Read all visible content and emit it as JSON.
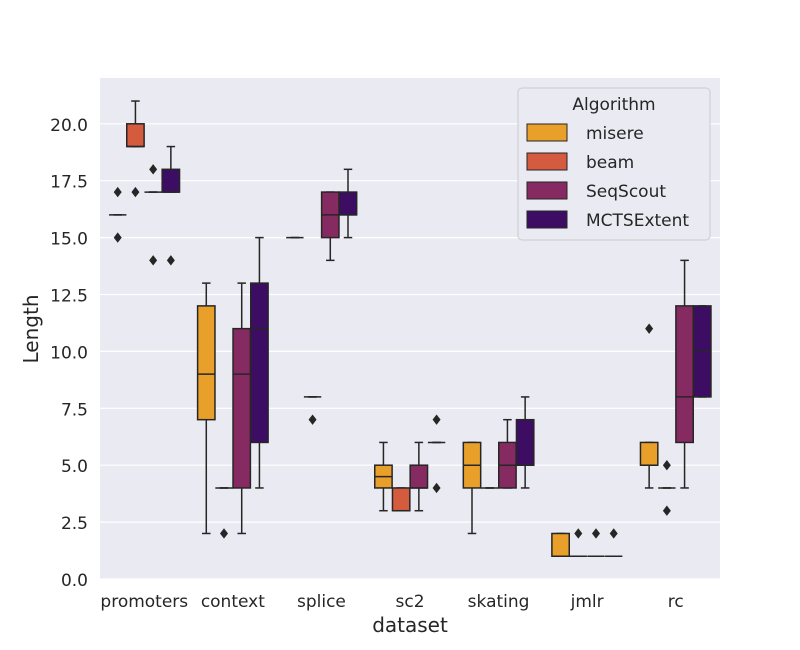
{
  "chart_data": {
    "type": "box",
    "title": "",
    "xlabel": "dataset",
    "ylabel": "Length",
    "ylim": [
      0,
      22.5
    ],
    "yticks": [
      0.0,
      2.5,
      5.0,
      7.5,
      10.0,
      12.5,
      15.0,
      17.5,
      20.0
    ],
    "ytick_labels": [
      "0.0",
      "2.5",
      "5.0",
      "7.5",
      "10.0",
      "12.5",
      "15.0",
      "17.5",
      "20.0"
    ],
    "grid": true,
    "legend": {
      "title": "Algorithm",
      "position": "top-right"
    },
    "categories": [
      "promoters",
      "context",
      "splice",
      "sc2",
      "skating",
      "jmlr",
      "rc"
    ],
    "series": [
      {
        "name": "misere",
        "color": "#e8a02a",
        "boxes": [
          {
            "q1": 16,
            "median": 16,
            "q3": 16,
            "whislo": 16,
            "whishi": 16,
            "fliers": [
              15,
              17
            ]
          },
          {
            "q1": 7,
            "median": 9,
            "q3": 12,
            "whislo": 2,
            "whishi": 13,
            "fliers": []
          },
          {
            "q1": 15,
            "median": 15,
            "q3": 15,
            "whislo": 15,
            "whishi": 15,
            "fliers": []
          },
          {
            "q1": 4,
            "median": 4.5,
            "q3": 5,
            "whislo": 3,
            "whishi": 6,
            "fliers": []
          },
          {
            "q1": 4,
            "median": 5,
            "q3": 6,
            "whislo": 2,
            "whishi": 6,
            "fliers": []
          },
          {
            "q1": 1,
            "median": 1,
            "q3": 2,
            "whislo": 1,
            "whishi": 2,
            "fliers": []
          },
          {
            "q1": 5,
            "median": 5,
            "q3": 6,
            "whislo": 4,
            "whishi": 6,
            "fliers": [
              11
            ]
          }
        ]
      },
      {
        "name": "beam",
        "color": "#d45b3e",
        "boxes": [
          {
            "q1": 19,
            "median": 19,
            "q3": 20,
            "whislo": 19,
            "whishi": 21,
            "fliers": [
              17
            ]
          },
          {
            "q1": 4,
            "median": 4,
            "q3": 4,
            "whislo": 4,
            "whishi": 4,
            "fliers": [
              2
            ]
          },
          {
            "q1": 8,
            "median": 8,
            "q3": 8,
            "whislo": 8,
            "whishi": 8,
            "fliers": [
              7
            ]
          },
          {
            "q1": 3,
            "median": 3,
            "q3": 4,
            "whislo": 3,
            "whishi": 4,
            "fliers": []
          },
          {
            "q1": 4,
            "median": 4,
            "q3": 4,
            "whislo": 4,
            "whishi": 4,
            "fliers": []
          },
          {
            "q1": 1,
            "median": 1,
            "q3": 1,
            "whislo": 1,
            "whishi": 1,
            "fliers": [
              2
            ]
          },
          {
            "q1": 4,
            "median": 4,
            "q3": 4,
            "whislo": 4,
            "whishi": 4,
            "fliers": [
              5,
              3
            ]
          }
        ]
      },
      {
        "name": "SeqScout",
        "color": "#862a62",
        "boxes": [
          {
            "q1": 17,
            "median": 17,
            "q3": 17,
            "whislo": 17,
            "whishi": 17,
            "fliers": [
              18,
              14
            ]
          },
          {
            "q1": 4,
            "median": 9,
            "q3": 11,
            "whislo": 2,
            "whishi": 13,
            "fliers": []
          },
          {
            "q1": 15,
            "median": 16,
            "q3": 17,
            "whislo": 14,
            "whishi": 17,
            "fliers": []
          },
          {
            "q1": 4,
            "median": 4,
            "q3": 5,
            "whislo": 3,
            "whishi": 6,
            "fliers": []
          },
          {
            "q1": 4,
            "median": 5,
            "q3": 6,
            "whislo": 4,
            "whishi": 7,
            "fliers": []
          },
          {
            "q1": 1,
            "median": 1,
            "q3": 1,
            "whislo": 1,
            "whishi": 1,
            "fliers": [
              2
            ]
          },
          {
            "q1": 6,
            "median": 8,
            "q3": 12,
            "whislo": 4,
            "whishi": 14,
            "fliers": []
          }
        ]
      },
      {
        "name": "MCTSExtent",
        "color": "#3c0d63",
        "boxes": [
          {
            "q1": 17,
            "median": 17,
            "q3": 18,
            "whislo": 17,
            "whishi": 19,
            "fliers": [
              14
            ]
          },
          {
            "q1": 6,
            "median": 11,
            "q3": 13,
            "whislo": 4,
            "whishi": 15,
            "fliers": []
          },
          {
            "q1": 16,
            "median": 16,
            "q3": 17,
            "whislo": 15,
            "whishi": 18,
            "fliers": []
          },
          {
            "q1": 6,
            "median": 6,
            "q3": 6,
            "whislo": 6,
            "whishi": 6,
            "fliers": [
              7,
              4
            ]
          },
          {
            "q1": 5,
            "median": 5,
            "q3": 7,
            "whislo": 4,
            "whishi": 8,
            "fliers": []
          },
          {
            "q1": 1,
            "median": 1,
            "q3": 1,
            "whislo": 1,
            "whishi": 1,
            "fliers": [
              2
            ]
          },
          {
            "q1": 8,
            "median": 10,
            "q3": 12,
            "whislo": 8,
            "whishi": 12,
            "fliers": []
          }
        ]
      }
    ]
  }
}
